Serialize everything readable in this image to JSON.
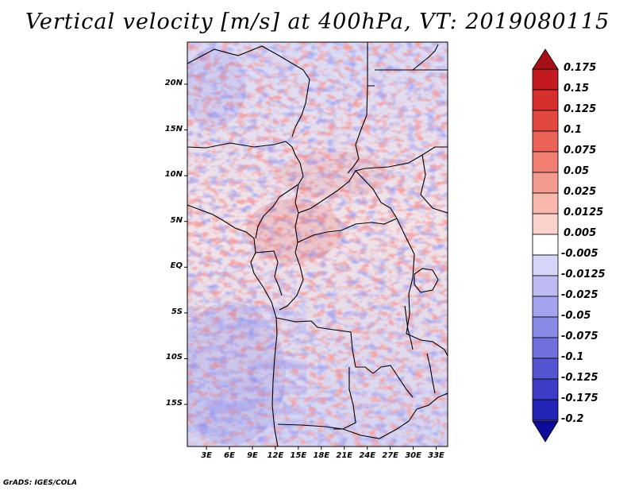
{
  "title": "Vertical velocity [m/s] at 400hPa, VT: 2019080115",
  "credit": "GrADS: IGES/COLA",
  "map": {
    "lat_labels": [
      "20N",
      "15N",
      "10N",
      "5N",
      "EQ",
      "5S",
      "10S",
      "15S"
    ],
    "lat_values": [
      20,
      15,
      10,
      5,
      0,
      -5,
      -10,
      -15
    ],
    "lon_labels": [
      "3E",
      "6E",
      "9E",
      "12E",
      "15E",
      "18E",
      "21E",
      "24E",
      "27E",
      "30E",
      "33E"
    ],
    "lon_values": [
      3,
      6,
      9,
      12,
      15,
      18,
      21,
      24,
      27,
      30,
      33
    ],
    "lon_range": [
      0.5,
      34.5
    ],
    "lat_range": [
      -19.6,
      24.6
    ]
  },
  "colorbar": {
    "labels": [
      "0.175",
      "0.15",
      "0.125",
      "0.1",
      "0.075",
      "0.05",
      "0.025",
      "0.0125",
      "0.005",
      "-0.005",
      "-0.0125",
      "-0.025",
      "-0.05",
      "-0.075",
      "-0.1",
      "-0.125",
      "-0.175",
      "-0.2"
    ],
    "colors": [
      "#a50f15",
      "#c21a1f",
      "#d6302c",
      "#e2483f",
      "#ea6356",
      "#f07f72",
      "#f49b8f",
      "#f8b8ae",
      "#fbd3cc",
      "#ffffff",
      "#d6d6f8",
      "#bcbcf3",
      "#a3a3ee",
      "#8989e6",
      "#6f6fdd",
      "#5555d2",
      "#3c3cc6",
      "#2323b5",
      "#0d0d9c"
    ]
  },
  "colors": {
    "frame": "#000000"
  }
}
